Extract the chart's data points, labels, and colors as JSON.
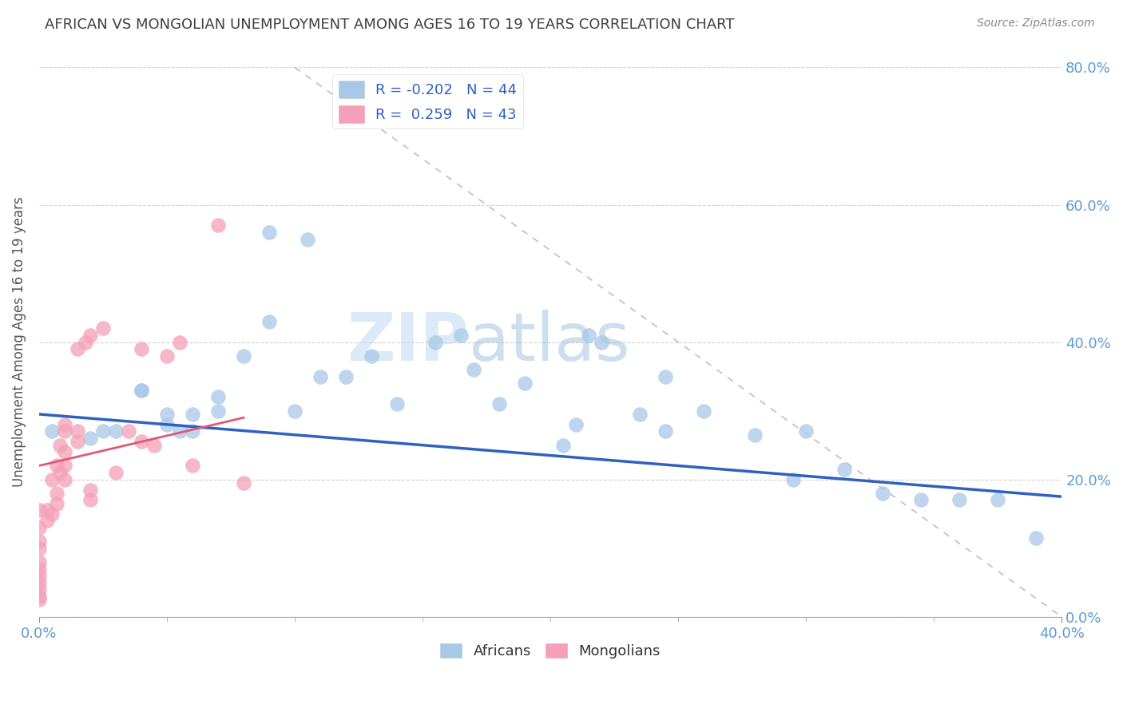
{
  "title": "AFRICAN VS MONGOLIAN UNEMPLOYMENT AMONG AGES 16 TO 19 YEARS CORRELATION CHART",
  "source": "Source: ZipAtlas.com",
  "ylabel": "Unemployment Among Ages 16 to 19 years",
  "xlim": [
    0.0,
    0.4
  ],
  "ylim": [
    0.0,
    0.8
  ],
  "xtick_positions": [
    0.0,
    0.4
  ],
  "xtick_labels": [
    "0.0%",
    "40.0%"
  ],
  "yticks": [
    0.0,
    0.2,
    0.4,
    0.6,
    0.8
  ],
  "ytick_labels": [
    "0.0%",
    "20.0%",
    "40.0%",
    "60.0%",
    "80.0%"
  ],
  "african_R": -0.202,
  "african_N": 44,
  "mongolian_R": 0.259,
  "mongolian_N": 43,
  "african_color": "#a8c8e8",
  "mongolian_color": "#f4a0b8",
  "african_line_color": "#3060c0",
  "mongolian_line_color": "#e05878",
  "background_color": "#ffffff",
  "grid_color": "#c8c8c8",
  "title_color": "#404040",
  "axis_label_color": "#555555",
  "tick_color": "#5b9bd5",
  "watermark_zip": "ZIP",
  "watermark_atlas": "atlas",
  "african_x": [
    0.005,
    0.02,
    0.025,
    0.03,
    0.04,
    0.04,
    0.05,
    0.05,
    0.055,
    0.06,
    0.06,
    0.07,
    0.07,
    0.08,
    0.09,
    0.09,
    0.1,
    0.105,
    0.11,
    0.12,
    0.13,
    0.14,
    0.155,
    0.165,
    0.17,
    0.18,
    0.19,
    0.205,
    0.21,
    0.215,
    0.22,
    0.235,
    0.245,
    0.245,
    0.26,
    0.28,
    0.295,
    0.3,
    0.315,
    0.33,
    0.345,
    0.36,
    0.375,
    0.39
  ],
  "african_y": [
    0.27,
    0.26,
    0.27,
    0.27,
    0.33,
    0.33,
    0.295,
    0.28,
    0.27,
    0.295,
    0.27,
    0.3,
    0.32,
    0.38,
    0.43,
    0.56,
    0.3,
    0.55,
    0.35,
    0.35,
    0.38,
    0.31,
    0.4,
    0.41,
    0.36,
    0.31,
    0.34,
    0.25,
    0.28,
    0.41,
    0.4,
    0.295,
    0.27,
    0.35,
    0.3,
    0.265,
    0.2,
    0.27,
    0.215,
    0.18,
    0.17,
    0.17,
    0.17,
    0.115
  ],
  "mongolian_x": [
    0.0,
    0.0,
    0.0,
    0.0,
    0.0,
    0.0,
    0.0,
    0.0,
    0.0,
    0.0,
    0.0,
    0.003,
    0.003,
    0.005,
    0.005,
    0.007,
    0.007,
    0.007,
    0.008,
    0.008,
    0.01,
    0.01,
    0.01,
    0.01,
    0.01,
    0.015,
    0.015,
    0.015,
    0.018,
    0.02,
    0.02,
    0.02,
    0.025,
    0.03,
    0.035,
    0.04,
    0.04,
    0.045,
    0.05,
    0.055,
    0.06,
    0.07,
    0.08
  ],
  "mongolian_y": [
    0.025,
    0.03,
    0.04,
    0.05,
    0.06,
    0.07,
    0.08,
    0.1,
    0.11,
    0.13,
    0.155,
    0.14,
    0.155,
    0.15,
    0.2,
    0.165,
    0.18,
    0.22,
    0.21,
    0.25,
    0.2,
    0.22,
    0.24,
    0.27,
    0.28,
    0.255,
    0.27,
    0.39,
    0.4,
    0.17,
    0.185,
    0.41,
    0.42,
    0.21,
    0.27,
    0.255,
    0.39,
    0.25,
    0.38,
    0.4,
    0.22,
    0.57,
    0.195
  ],
  "african_line_x": [
    0.0,
    0.4
  ],
  "african_line_y": [
    0.295,
    0.175
  ],
  "mongolian_line_x": [
    0.0,
    0.08
  ],
  "mongolian_line_y": [
    0.22,
    0.29
  ],
  "diag_line_x": [
    0.1,
    0.4
  ],
  "diag_line_y": [
    0.8,
    0.0
  ]
}
